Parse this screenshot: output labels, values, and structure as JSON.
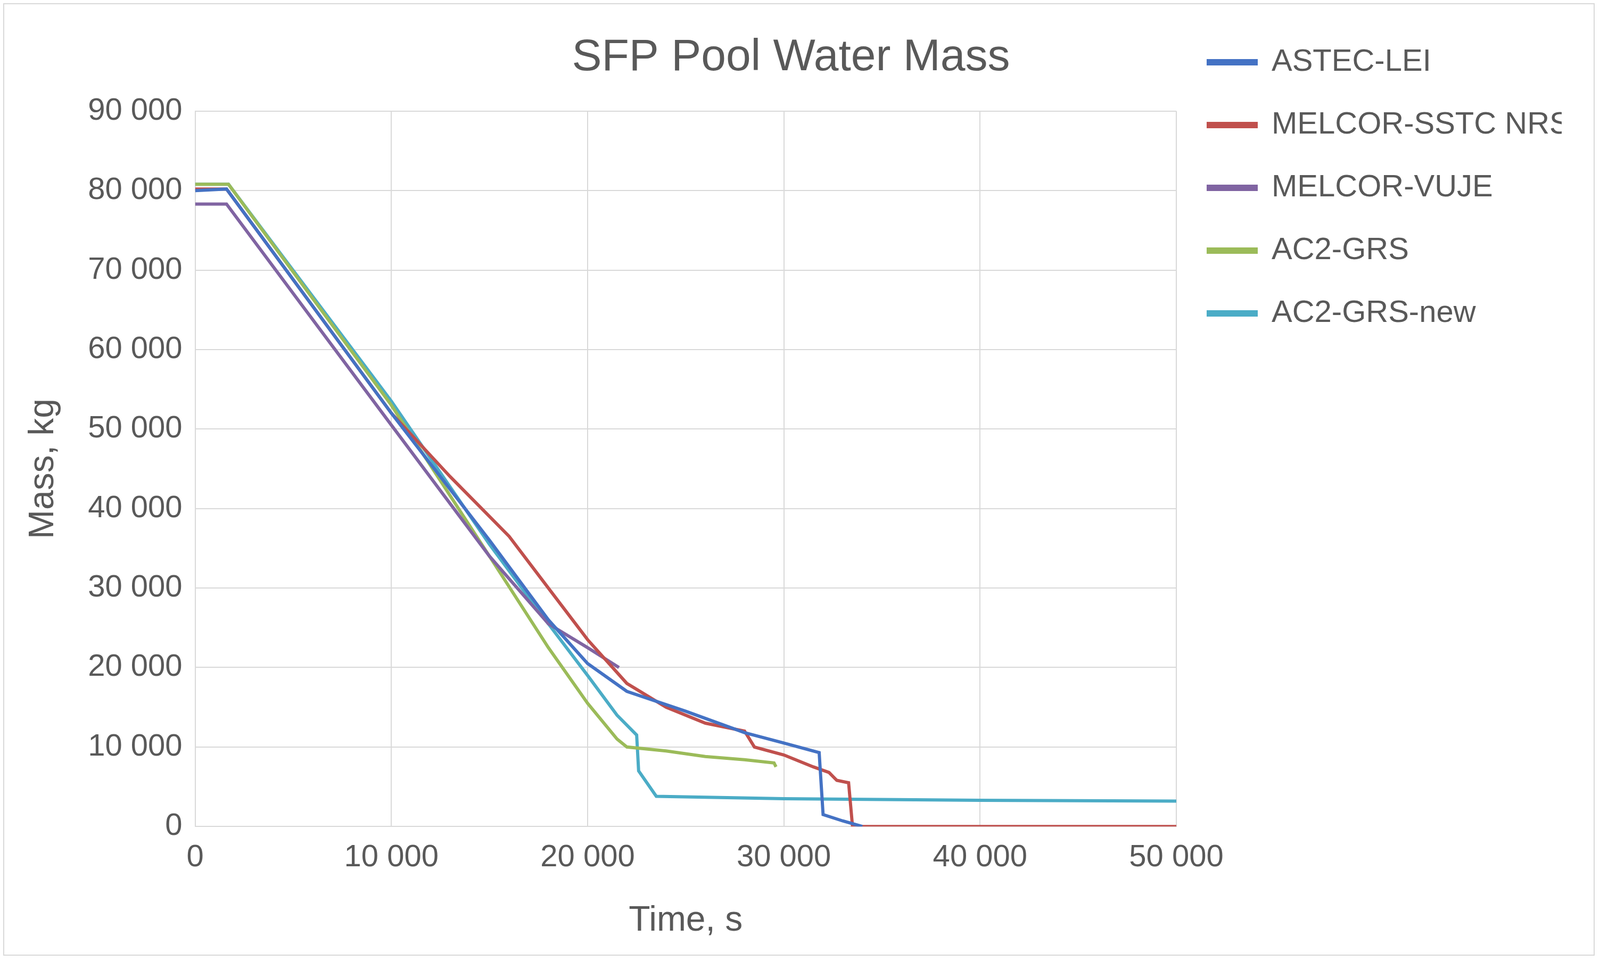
{
  "chart_data": {
    "type": "line",
    "title": "SFP Pool Water Mass",
    "x_label": "Time, s",
    "y_label": "Mass, kg",
    "xlim": [
      0,
      50000
    ],
    "xticks": [
      0,
      {
        "value": 10000,
        "label": "10 000"
      },
      {
        "value": 20000,
        "label": "20 000"
      },
      {
        "value": 30000,
        "label": "30 000"
      },
      {
        "value": 40000,
        "label": "40 000"
      },
      {
        "value": 50000,
        "label": "50 000"
      }
    ],
    "ylim": [
      0,
      90000
    ],
    "yticks": [
      0,
      {
        "value": 10000,
        "label": "10 000"
      },
      {
        "value": 20000,
        "label": "20 000"
      },
      {
        "value": 30000,
        "label": "30 000"
      },
      {
        "value": 40000,
        "label": "40 000"
      },
      {
        "value": 50000,
        "label": "50 000"
      },
      {
        "value": 60000,
        "label": "60 000"
      },
      {
        "value": 70000,
        "label": "70 000"
      },
      {
        "value": 80000,
        "label": "80 000"
      },
      {
        "value": 90000,
        "label": "90 000"
      }
    ],
    "grid": true,
    "legend": "right",
    "series": [
      {
        "name": "ASTEC-LEI",
        "color": "#4472c4",
        "x": [
          0,
          1600,
          10000,
          15000,
          18000,
          20000,
          22000,
          25000,
          28000,
          30000,
          31800,
          32000,
          33000,
          34000
        ],
        "values": [
          80000,
          80200,
          52000,
          36000,
          26000,
          20500,
          17000,
          14500,
          11800,
          10500,
          9300,
          1500,
          700,
          0
        ]
      },
      {
        "name": "MELCOR-SSTC NRS",
        "color": "#c0504d",
        "x": [
          0,
          1600,
          10000,
          13000,
          16000,
          18000,
          20000,
          22000,
          24000,
          26000,
          28000,
          28500,
          30000,
          31500,
          32300,
          32700,
          33300,
          33500,
          50000
        ],
        "values": [
          80200,
          80200,
          52000,
          44000,
          36500,
          30000,
          23500,
          18000,
          15000,
          13000,
          12000,
          10000,
          9000,
          7500,
          6800,
          5800,
          5500,
          0,
          0
        ]
      },
      {
        "name": "MELCOR-VUJE",
        "color": "#8064a2",
        "x": [
          0,
          1600,
          10000,
          15000,
          18000,
          20000,
          21600
        ],
        "values": [
          78300,
          78300,
          50500,
          34000,
          25500,
          22500,
          20000
        ]
      },
      {
        "name": "AC2-GRS",
        "color": "#9bbb59",
        "x": [
          0,
          1700,
          10000,
          15000,
          18000,
          20000,
          21500,
          22000,
          24000,
          26000,
          28000,
          29500,
          29600
        ],
        "values": [
          80800,
          80800,
          53000,
          34000,
          22500,
          15500,
          11000,
          10000,
          9500,
          8800,
          8400,
          8000,
          7500
        ]
      },
      {
        "name": "AC2-GRS-new",
        "color": "#4bacc6",
        "x": [
          0,
          1700,
          10000,
          15000,
          18000,
          20000,
          21500,
          22500,
          22600,
          23500,
          30000,
          40000,
          50000
        ],
        "values": [
          80800,
          80800,
          53500,
          35500,
          25500,
          19000,
          14000,
          11500,
          7000,
          3800,
          3500,
          3300,
          3200
        ]
      }
    ]
  }
}
